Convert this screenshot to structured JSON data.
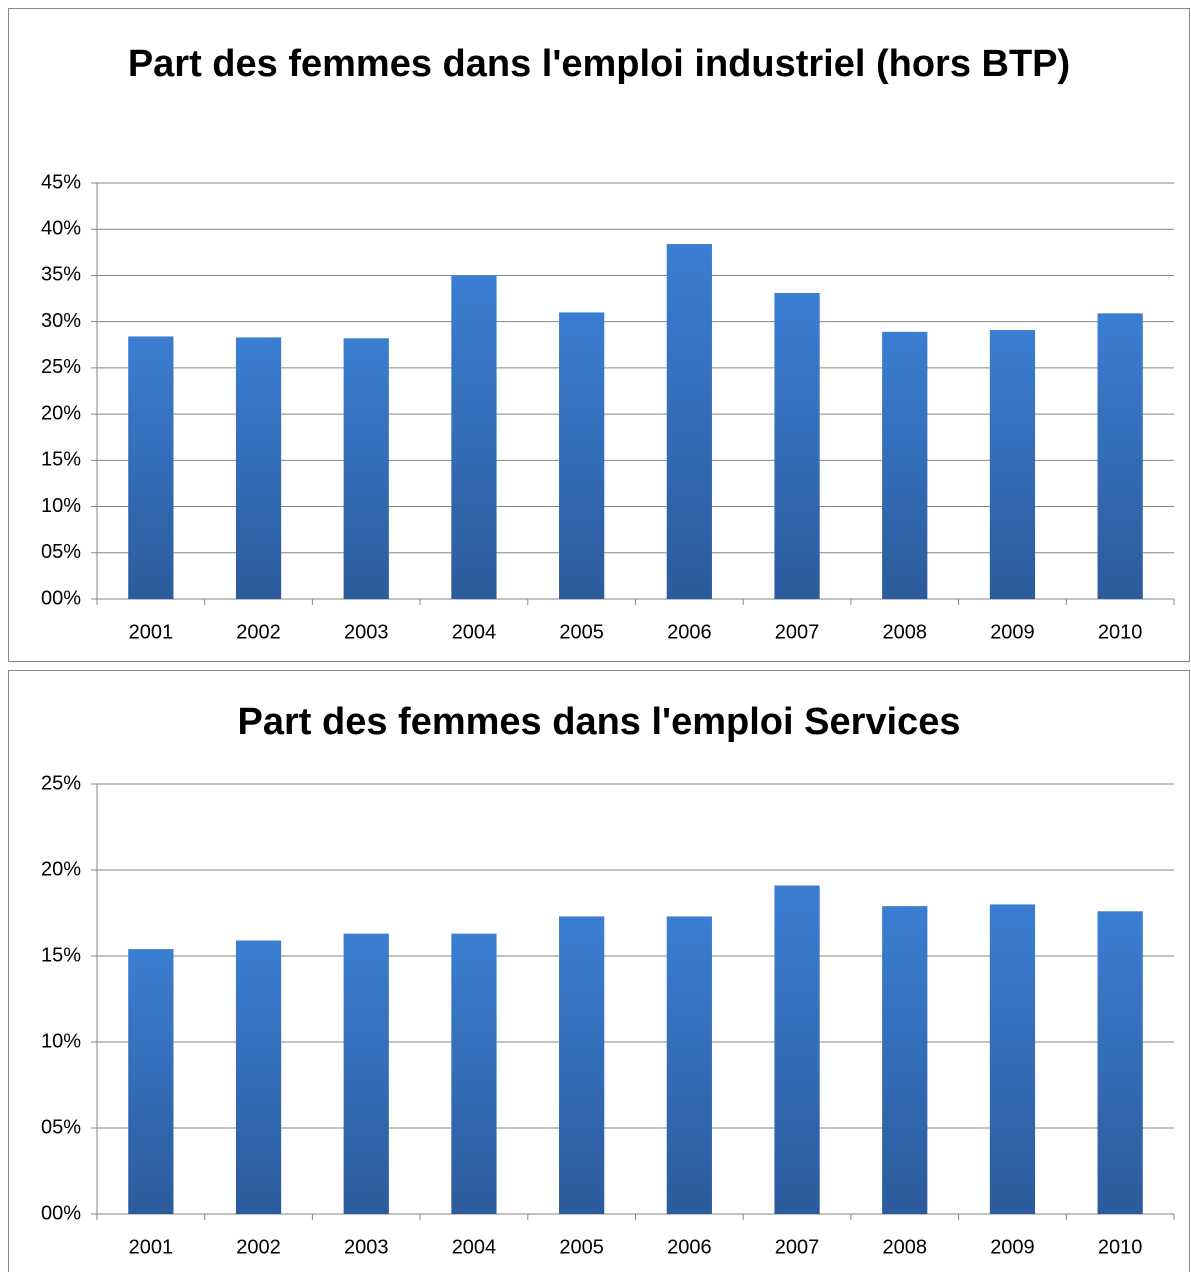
{
  "chart_data": [
    {
      "type": "bar",
      "title": "Part des femmes dans l'emploi  industriel (hors BTP)",
      "categories": [
        "2001",
        "2002",
        "2003",
        "2004",
        "2005",
        "2006",
        "2007",
        "2008",
        "2009",
        "2010"
      ],
      "values": [
        28.4,
        28.3,
        28.2,
        35.0,
        31.0,
        38.4,
        33.1,
        28.9,
        29.1,
        30.9
      ],
      "color": "#3a7ccf",
      "ylim": [
        0,
        45
      ],
      "yticks": [
        {
          "value": 0,
          "label": "00%"
        },
        {
          "value": 5,
          "label": "05%"
        },
        {
          "value": 10,
          "label": "10%"
        },
        {
          "value": 15,
          "label": "15%"
        },
        {
          "value": 20,
          "label": "20%"
        },
        {
          "value": 25,
          "label": "25%"
        },
        {
          "value": 30,
          "label": "30%"
        },
        {
          "value": 35,
          "label": "35%"
        },
        {
          "value": 40,
          "label": "40%"
        },
        {
          "value": 45,
          "label": "45%"
        }
      ],
      "grid": true
    },
    {
      "type": "bar",
      "title": "Part des femmes dans l'emploi Services",
      "categories": [
        "2001",
        "2002",
        "2003",
        "2004",
        "2005",
        "2006",
        "2007",
        "2008",
        "2009",
        "2010"
      ],
      "values": [
        15.4,
        15.9,
        16.3,
        16.3,
        17.3,
        17.3,
        19.1,
        17.9,
        18.0,
        17.6
      ],
      "color": "#3a7ccf",
      "ylim": [
        0,
        25
      ],
      "yticks": [
        {
          "value": 0,
          "label": "00%"
        },
        {
          "value": 5,
          "label": "05%"
        },
        {
          "value": 10,
          "label": "10%"
        },
        {
          "value": 15,
          "label": "15%"
        },
        {
          "value": 20,
          "label": "20%"
        },
        {
          "value": 25,
          "label": "25%"
        }
      ],
      "grid": true
    }
  ]
}
